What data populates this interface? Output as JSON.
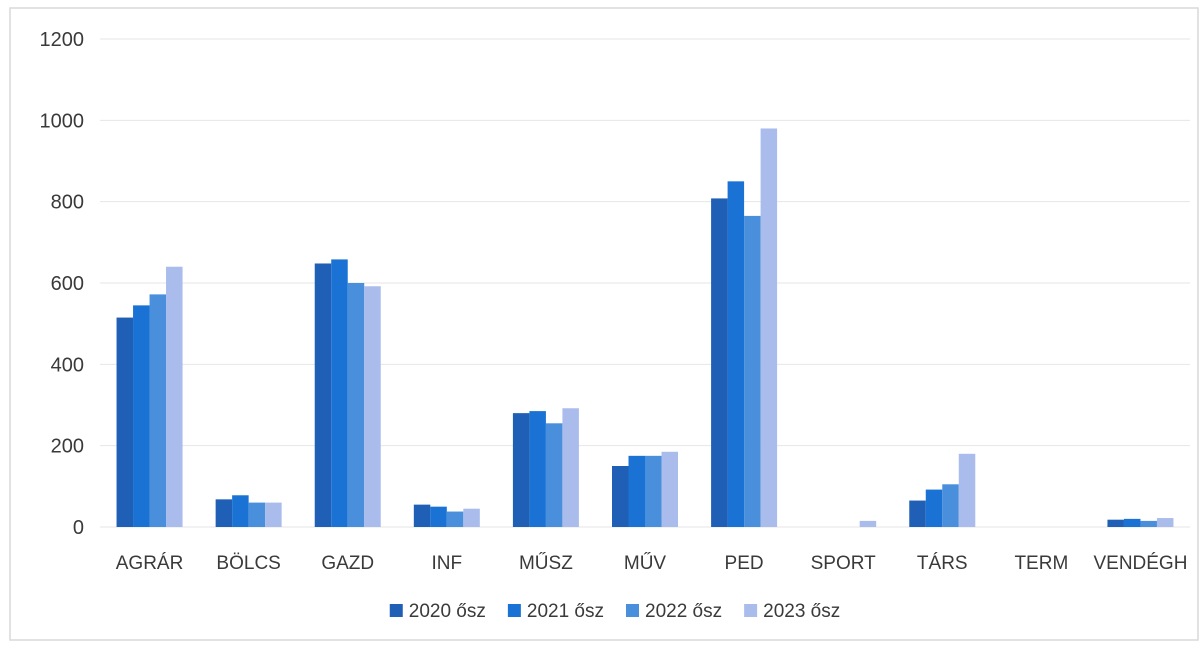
{
  "chart_data": {
    "type": "bar",
    "categories": [
      "AGRÁR",
      "BÖLCS",
      "GAZD",
      "INF",
      "MŰSZ",
      "MŰV",
      "PED",
      "SPORT",
      "TÁRS",
      "TERM",
      "VENDÉGH"
    ],
    "series": [
      {
        "name": "2020 ősz",
        "color": "#1f5fb5",
        "values": [
          515,
          68,
          648,
          55,
          280,
          150,
          808,
          0,
          65,
          0,
          18
        ]
      },
      {
        "name": "2021 ősz",
        "color": "#1a72d4",
        "values": [
          545,
          78,
          658,
          50,
          285,
          175,
          850,
          0,
          92,
          0,
          20
        ]
      },
      {
        "name": "2022 ősz",
        "color": "#4a8fdb",
        "values": [
          572,
          60,
          600,
          38,
          255,
          175,
          765,
          0,
          105,
          0,
          15
        ]
      },
      {
        "name": "2023 ősz",
        "color": "#a9bcec",
        "values": [
          640,
          60,
          592,
          45,
          292,
          185,
          980,
          15,
          180,
          0,
          22
        ]
      }
    ],
    "yticks": [
      0,
      200,
      400,
      600,
      800,
      1000,
      1200
    ],
    "ylim": [
      0,
      1200
    ],
    "grid": true,
    "legend_position": "bottom"
  }
}
